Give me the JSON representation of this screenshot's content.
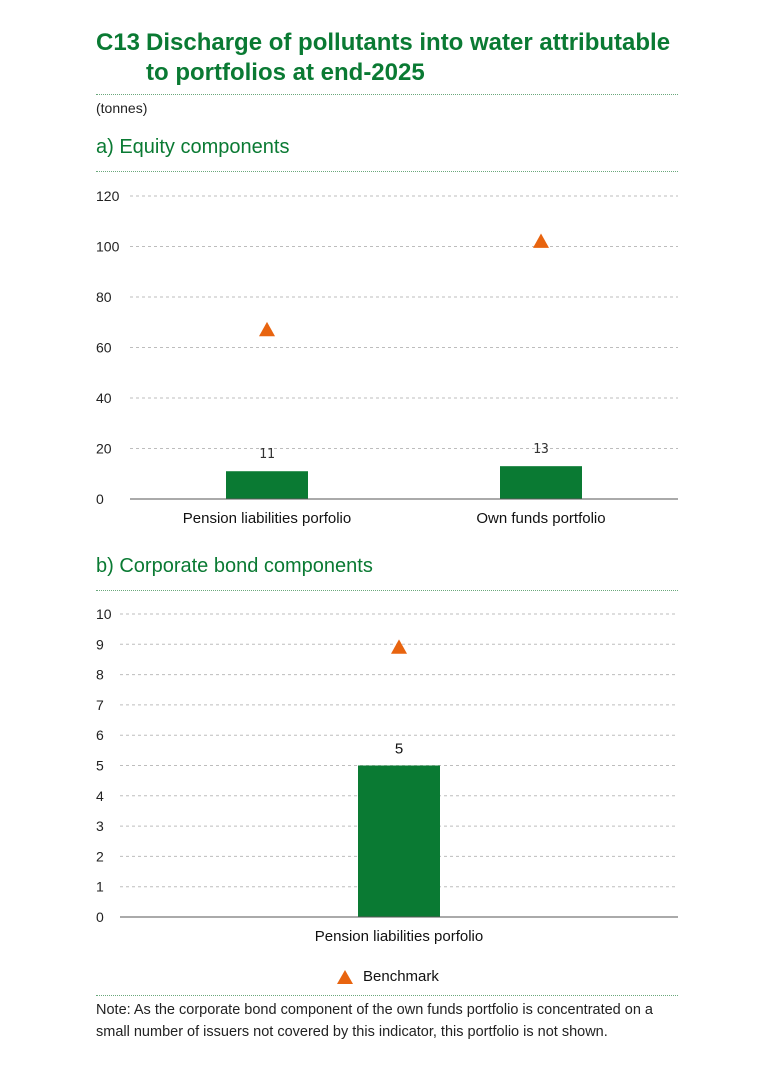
{
  "header": {
    "code": "C13",
    "title_line1": "Discharge of pollutants into water attributable",
    "title_line2": "to portfolios at end-2025",
    "units": "(tonnes)"
  },
  "panels": {
    "a_title": "a)  Equity components",
    "b_title": "b)  Corporate bond components"
  },
  "legend": {
    "benchmark": "Benchmark"
  },
  "colors": {
    "bar": "#0a7a33",
    "benchmark": "#e8640f",
    "title": "#0a7a33"
  },
  "note": "Note: As the corporate bond component of the own funds portfolio is concentrated on a small number of issuers not covered by this indicator, this portfolio is not shown.",
  "chart_data": [
    {
      "type": "bar",
      "title": "a)  Equity components",
      "categories": [
        "Pension liabilities porfolio",
        "Own funds portfolio"
      ],
      "values": [
        11,
        13
      ],
      "data_labels": [
        "11",
        "13"
      ],
      "benchmark": [
        67,
        102
      ],
      "ylim": [
        0,
        120
      ],
      "yticks": [
        0,
        20,
        40,
        60,
        80,
        100,
        120
      ],
      "grid": true
    },
    {
      "type": "bar",
      "title": "b)  Corporate bond components",
      "categories": [
        "Pension liabilities porfolio"
      ],
      "values": [
        5
      ],
      "data_labels": [
        "5"
      ],
      "benchmark": [
        8.9
      ],
      "ylim": [
        0,
        10
      ],
      "yticks": [
        0,
        1,
        2,
        3,
        4,
        5,
        6,
        7,
        8,
        9,
        10
      ],
      "grid": true
    }
  ]
}
